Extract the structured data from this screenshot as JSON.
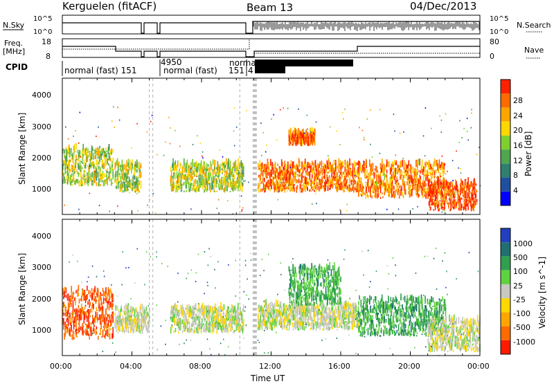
{
  "header": {
    "station": "Kerguelen (fitACF)",
    "beam": "Beam 13",
    "date": "04/Dec/2013"
  },
  "top_panels": {
    "nsky_label": "N.Sky",
    "nsky_ticks": [
      "10^5",
      "10^0"
    ],
    "nsearch_label": "N.Search",
    "nsearch_ticks": [
      "10^5",
      "10^0"
    ],
    "freq_label": "Freq.",
    "freq_unit": "[MHz]",
    "freq_ticks": [
      "18",
      "8"
    ],
    "nave_label": "Nave",
    "nave_ticks": [
      "80",
      "0"
    ],
    "cpid_label": "CPID",
    "cpid_segments": [
      "normal (fast) 151",
      "4950",
      "normal (fast)",
      "151",
      "norma",
      "4"
    ]
  },
  "chart_data": [
    {
      "type": "heatmap",
      "name": "power",
      "ylabel": "Slant Range [km]",
      "xlabel": "",
      "ylim": [
        200,
        4600
      ],
      "yticks": [
        "4000",
        "3000",
        "2000",
        "1000"
      ],
      "xticks": [
        "00:00",
        "04:00",
        "08:00",
        "12:00",
        "16:00",
        "20:00",
        "00:00"
      ],
      "colorbar": {
        "label": "Power [dB]",
        "ticks": [
          "28",
          "24",
          "20",
          "16",
          "12",
          "8",
          "4"
        ],
        "colors": [
          "#0000ff",
          "#1f4f9f",
          "#2f7f6f",
          "#4fa64f",
          "#7fcf2f",
          "#ffd700",
          "#ffa500",
          "#ff6a00",
          "#ff2000"
        ]
      },
      "echo_bands_hours_km": [
        {
          "t": [
            0.0,
            2.9
          ],
          "r": [
            1100,
            2300
          ],
          "level": 0.55
        },
        {
          "t": [
            3.0,
            4.5
          ],
          "r": [
            900,
            1800
          ],
          "level": 0.55
        },
        {
          "t": [
            6.2,
            10.4
          ],
          "r": [
            900,
            1800
          ],
          "level": 0.55
        },
        {
          "t": [
            11.0,
            17.0
          ],
          "r": [
            900,
            1800
          ],
          "level": 0.85
        },
        {
          "t": [
            13.0,
            14.5
          ],
          "r": [
            2400,
            2800
          ],
          "level": 0.85
        },
        {
          "t": [
            17.0,
            22.0
          ],
          "r": [
            700,
            1800
          ],
          "level": 0.8
        },
        {
          "t": [
            21.0,
            23.8
          ],
          "r": [
            300,
            1200
          ],
          "level": 0.95
        }
      ]
    },
    {
      "type": "heatmap",
      "name": "velocity",
      "ylabel": "Slant Range [km]",
      "xlabel": "Time UT",
      "ylim": [
        200,
        4600
      ],
      "yticks": [
        "4000",
        "3000",
        "2000",
        "1000"
      ],
      "xticks": [
        "00:00",
        "04:00",
        "08:00",
        "12:00",
        "16:00",
        "20:00",
        "00:00"
      ],
      "colorbar": {
        "label": "Velocity [m s^-1]",
        "ticks": [
          "1000",
          "500",
          "100",
          "25",
          "-25",
          "-100",
          "-500",
          "-1000"
        ],
        "colors": [
          "#2040c0",
          "#207070",
          "#2fa04f",
          "#5fd23f",
          "#c8c8c0",
          "#ffd700",
          "#ffa500",
          "#ff6a00",
          "#ff1a00"
        ]
      },
      "echo_bands_hours_km": [
        {
          "t": [
            0.0,
            2.9
          ],
          "r": [
            700,
            2300
          ],
          "level": -0.8
        },
        {
          "t": [
            3.0,
            5.0
          ],
          "r": [
            900,
            1700
          ],
          "level": 0.0
        },
        {
          "t": [
            6.2,
            10.4
          ],
          "r": [
            900,
            1700
          ],
          "level": 0.0
        },
        {
          "t": [
            11.0,
            17.0
          ],
          "r": [
            1000,
            1800
          ],
          "level": 0.0
        },
        {
          "t": [
            13.0,
            16.0
          ],
          "r": [
            1800,
            3000
          ],
          "level": 0.4
        },
        {
          "t": [
            17.0,
            22.0
          ],
          "r": [
            800,
            2000
          ],
          "level": 0.45
        },
        {
          "t": [
            21.0,
            24.0
          ],
          "r": [
            300,
            1300
          ],
          "level": 0.0
        }
      ]
    }
  ]
}
